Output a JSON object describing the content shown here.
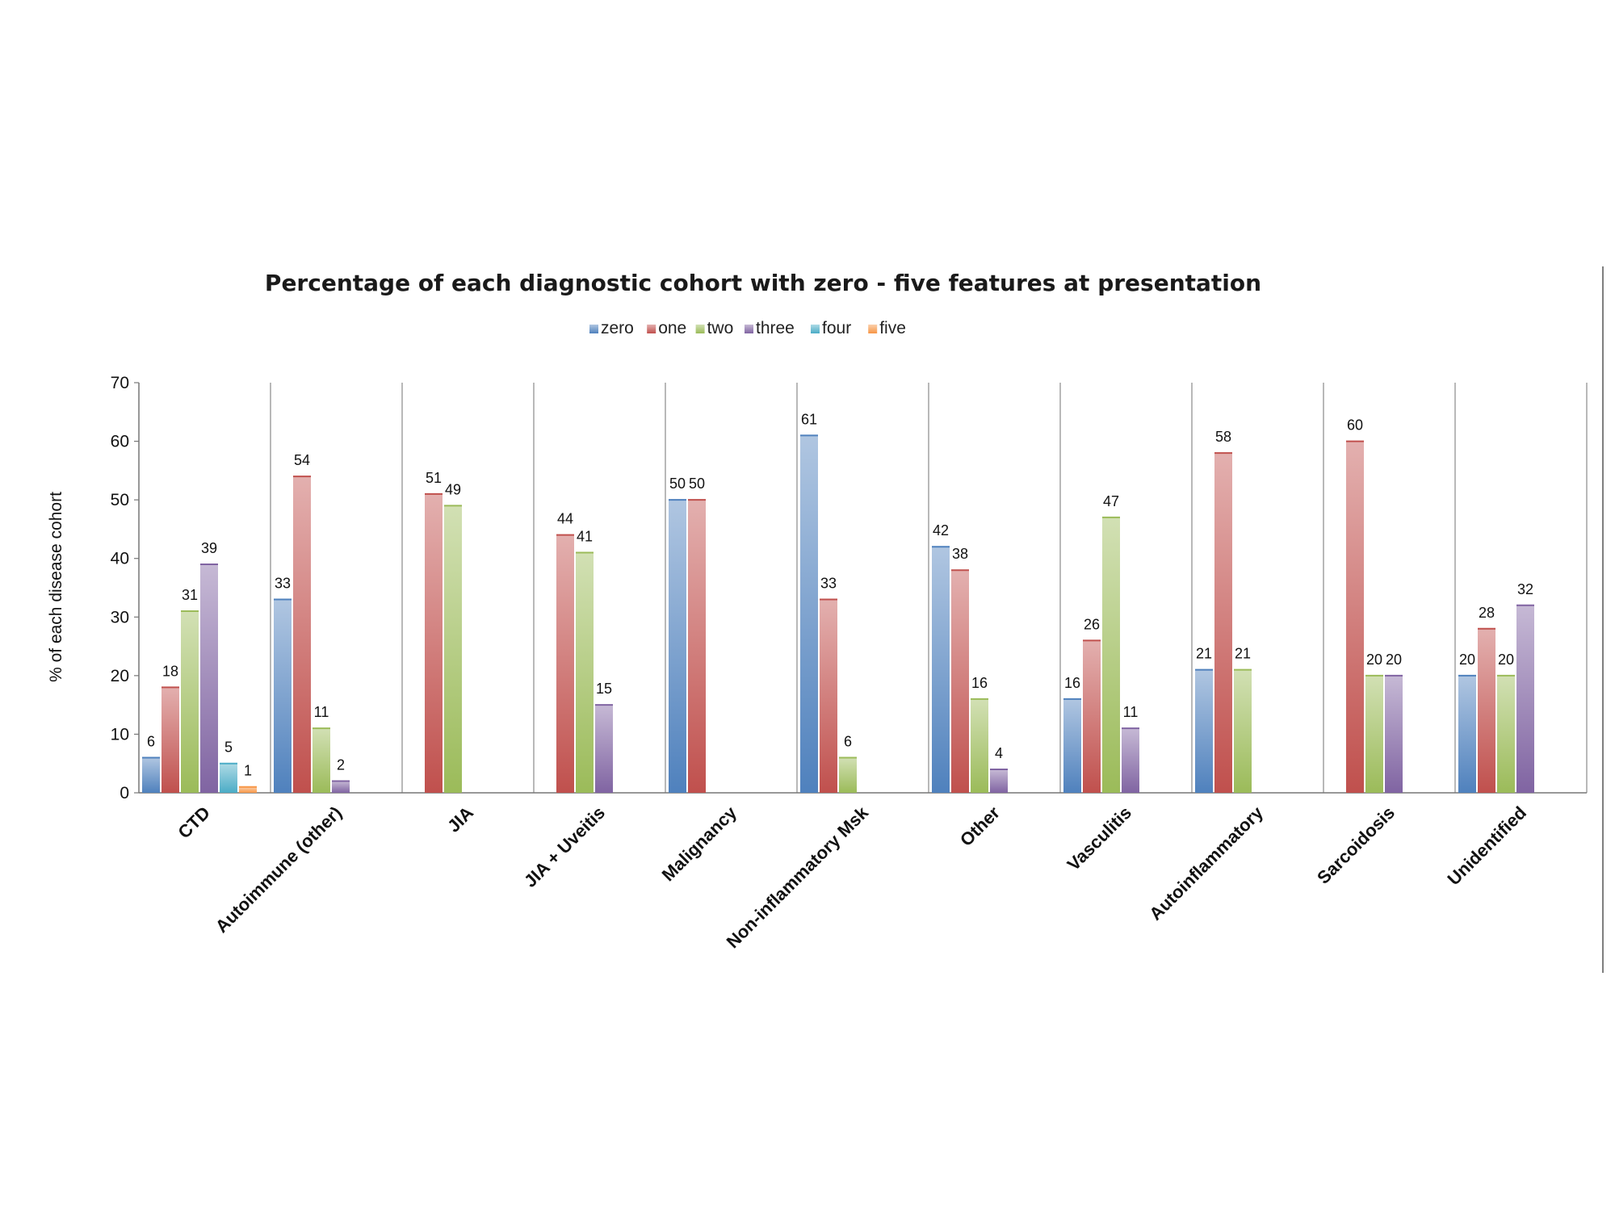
{
  "chart_data": {
    "type": "bar",
    "title": "Percentage of each diagnostic cohort with zero - five features at presentation",
    "xlabel": "",
    "ylabel": "% of each disease cohort",
    "ylim": [
      0,
      70
    ],
    "yticks": [
      0,
      10,
      20,
      30,
      40,
      50,
      60,
      70
    ],
    "legend_position": "top-center",
    "categories": [
      "CTD",
      "Autoimmune (other)",
      "JIA",
      "JIA + Uveitis",
      "Malignancy",
      "Non-inflammatory Msk",
      "Other",
      "Vasculitis",
      "Autoinflammatory",
      "Sarcoidosis",
      "Unidentified"
    ],
    "series": [
      {
        "name": "zero",
        "color": "#4f81bd",
        "values": [
          6,
          33,
          null,
          null,
          50,
          61,
          42,
          16,
          21,
          null,
          20
        ]
      },
      {
        "name": "one",
        "color": "#c0504d",
        "values": [
          18,
          54,
          51,
          44,
          50,
          33,
          38,
          26,
          58,
          60,
          28
        ]
      },
      {
        "name": "two",
        "color": "#9bbb59",
        "values": [
          31,
          11,
          49,
          41,
          null,
          6,
          16,
          47,
          21,
          20,
          20
        ]
      },
      {
        "name": "three",
        "color": "#8064a2",
        "values": [
          39,
          2,
          null,
          15,
          null,
          null,
          4,
          11,
          null,
          20,
          32
        ]
      },
      {
        "name": "four",
        "color": "#4bacc6",
        "values": [
          5,
          null,
          null,
          null,
          null,
          null,
          null,
          null,
          null,
          null,
          null
        ]
      },
      {
        "name": "five",
        "color": "#f79646",
        "values": [
          1,
          null,
          null,
          null,
          null,
          null,
          null,
          null,
          null,
          null,
          null
        ]
      }
    ]
  }
}
